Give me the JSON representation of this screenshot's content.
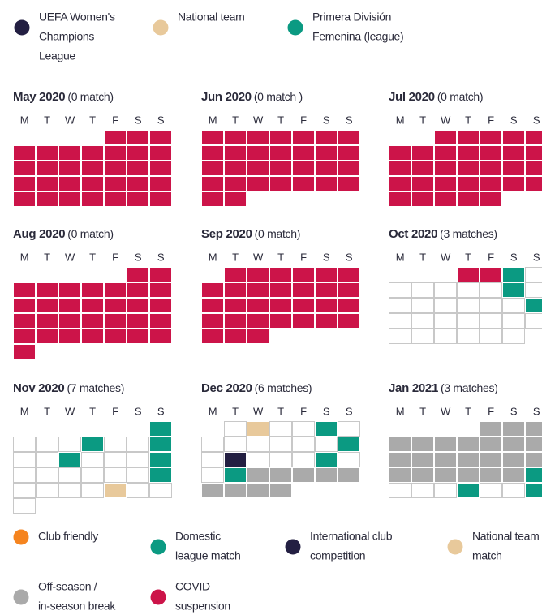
{
  "top_legend": [
    {
      "lines": [
        "UEFA Women's",
        "Champions",
        "League"
      ],
      "color": "#231f42"
    },
    {
      "lines": [
        "National team"
      ],
      "color": "#e8c99b"
    },
    {
      "lines": [
        "Primera División",
        "Femenina (league)"
      ],
      "color": "#0b9a82"
    }
  ],
  "weekdays": [
    "M",
    "T",
    "W",
    "T",
    "F",
    "S",
    "S"
  ],
  "state_colors": {
    "covid": "#cc1449",
    "league": "#0b9a82",
    "national": "#e8c99b",
    "ucl": "#231f42",
    "break": "#aaaaaa",
    "empty": "#ffffff"
  },
  "months": [
    {
      "name": "May 2020",
      "count": "(0 match)",
      "days": [
        null,
        null,
        null,
        null,
        "covid",
        "covid",
        "covid",
        "covid",
        "covid",
        "covid",
        "covid",
        "covid",
        "covid",
        "covid",
        "covid",
        "covid",
        "covid",
        "covid",
        "covid",
        "covid",
        "covid",
        "covid",
        "covid",
        "covid",
        "covid",
        "covid",
        "covid",
        "covid",
        "covid",
        "covid",
        "covid",
        "covid",
        "covid",
        "covid",
        "covid"
      ]
    },
    {
      "name": "Jun 2020",
      "count": "(0 match )",
      "days": [
        "covid",
        "covid",
        "covid",
        "covid",
        "covid",
        "covid",
        "covid",
        "covid",
        "covid",
        "covid",
        "covid",
        "covid",
        "covid",
        "covid",
        "covid",
        "covid",
        "covid",
        "covid",
        "covid",
        "covid",
        "covid",
        "covid",
        "covid",
        "covid",
        "covid",
        "covid",
        "covid",
        "covid",
        "covid",
        "covid"
      ]
    },
    {
      "name": "Jul 2020",
      "count": "(0 match)",
      "days": [
        null,
        null,
        "covid",
        "covid",
        "covid",
        "covid",
        "covid",
        "covid",
        "covid",
        "covid",
        "covid",
        "covid",
        "covid",
        "covid",
        "covid",
        "covid",
        "covid",
        "covid",
        "covid",
        "covid",
        "covid",
        "covid",
        "covid",
        "covid",
        "covid",
        "covid",
        "covid",
        "covid",
        "covid",
        "covid",
        "covid",
        "covid",
        "covid"
      ]
    },
    {
      "name": "Aug 2020",
      "count": "(0 match)",
      "days": [
        null,
        null,
        null,
        null,
        null,
        "covid",
        "covid",
        "covid",
        "covid",
        "covid",
        "covid",
        "covid",
        "covid",
        "covid",
        "covid",
        "covid",
        "covid",
        "covid",
        "covid",
        "covid",
        "covid",
        "covid",
        "covid",
        "covid",
        "covid",
        "covid",
        "covid",
        "covid",
        "covid",
        "covid",
        "covid",
        "covid",
        "covid",
        "covid",
        "covid",
        "covid"
      ]
    },
    {
      "name": "Sep 2020",
      "count": "(0 match)",
      "days": [
        null,
        "covid",
        "covid",
        "covid",
        "covid",
        "covid",
        "covid",
        "covid",
        "covid",
        "covid",
        "covid",
        "covid",
        "covid",
        "covid",
        "covid",
        "covid",
        "covid",
        "covid",
        "covid",
        "covid",
        "covid",
        "covid",
        "covid",
        "covid",
        "covid",
        "covid",
        "covid",
        "covid",
        "covid",
        "covid",
        "covid"
      ]
    },
    {
      "name": "Oct 2020",
      "count": "(3 matches)",
      "days": [
        null,
        null,
        null,
        "covid",
        "covid",
        "league",
        "empty",
        "empty",
        "empty",
        "empty",
        "empty",
        "empty",
        "league",
        "empty",
        "empty",
        "empty",
        "empty",
        "empty",
        "empty",
        "empty",
        "league",
        "empty",
        "empty",
        "empty",
        "empty",
        "empty",
        "empty",
        "empty",
        "empty",
        "empty",
        "empty",
        "empty",
        "empty",
        "empty"
      ]
    },
    {
      "name": "Nov 2020",
      "count": "(7 matches)",
      "days": [
        null,
        null,
        null,
        null,
        null,
        null,
        "league",
        "empty",
        "empty",
        "empty",
        "league",
        "empty",
        "empty",
        "league",
        "empty",
        "empty",
        "league",
        "empty",
        "empty",
        "empty",
        "league",
        "empty",
        "empty",
        "empty",
        "empty",
        "empty",
        "empty",
        "league",
        "empty",
        "empty",
        "empty",
        "empty",
        "national",
        "empty",
        "empty",
        "empty"
      ]
    },
    {
      "name": "Dec 2020",
      "count": "(6 matches)",
      "days": [
        null,
        "empty",
        "national",
        "empty",
        "empty",
        "league",
        "empty",
        "empty",
        "empty",
        "empty",
        "empty",
        "empty",
        "empty",
        "league",
        "empty",
        "ucl",
        "empty",
        "empty",
        "empty",
        "league",
        "empty",
        "empty",
        "league",
        "break",
        "break",
        "break",
        "break",
        "break",
        "break",
        "break",
        "break",
        "break"
      ]
    },
    {
      "name": "Jan 2021",
      "count": "(3 matches)",
      "days": [
        null,
        null,
        null,
        null,
        "break",
        "break",
        "break",
        "break",
        "break",
        "break",
        "break",
        "break",
        "break",
        "break",
        "break",
        "break",
        "break",
        "break",
        "break",
        "break",
        "break",
        "break",
        "break",
        "break",
        "break",
        "break",
        "break",
        "league",
        "empty",
        "empty",
        "empty",
        "league",
        "empty",
        "empty",
        "league"
      ]
    }
  ],
  "bottom_legend": [
    {
      "lines": [
        "Club friendly"
      ],
      "color": "#f5841f"
    },
    {
      "lines": [
        "Domestic",
        "league match"
      ],
      "color": "#0b9a82"
    },
    {
      "lines": [
        "International club",
        "competition"
      ],
      "color": "#231f42"
    },
    {
      "lines": [
        "National team",
        "match"
      ],
      "color": "#e8c99b"
    },
    {
      "lines": [
        "Off-season /",
        "in-season break"
      ],
      "color": "#aaaaaa"
    },
    {
      "lines": [
        "COVID",
        "suspension"
      ],
      "color": "#cc1449"
    }
  ]
}
